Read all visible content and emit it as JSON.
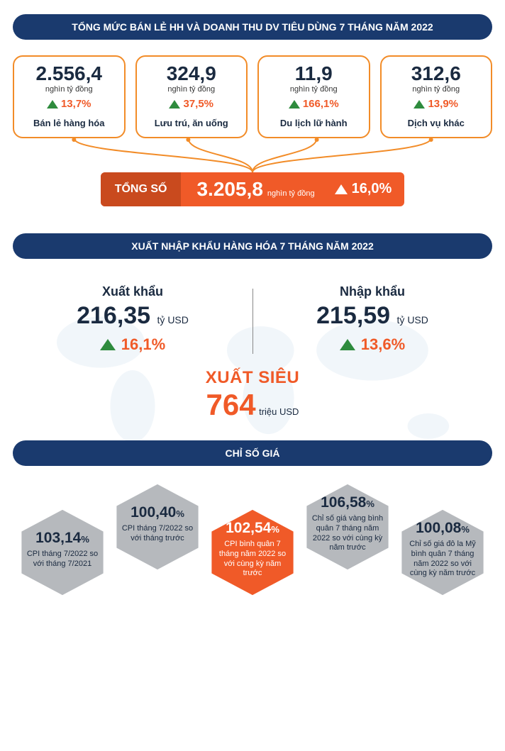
{
  "colors": {
    "navy": "#1a3a6e",
    "orange": "#f05a28",
    "card_border": "#f28c28",
    "green": "#2e8b3d",
    "gray_hex": "#b6b9bd",
    "text_dark": "#1a2a40",
    "map_tint": "#b8d2e6"
  },
  "retail": {
    "header": "TỔNG MỨC BÁN LẺ HH VÀ DOANH THU DV TIÊU DÙNG 7 THÁNG NĂM 2022",
    "unit": "nghìn tỷ đồng",
    "cards": [
      {
        "value": "2.556,4",
        "growth": "13,7%",
        "label": "Bán lẻ hàng hóa"
      },
      {
        "value": "324,9",
        "growth": "37,5%",
        "label": "Lưu trú, ăn uống"
      },
      {
        "value": "11,9",
        "growth": "166,1%",
        "label": "Du lịch lữ hành"
      },
      {
        "value": "312,6",
        "growth": "13,9%",
        "label": "Dịch vụ khác"
      }
    ],
    "total": {
      "label": "TỔNG SỐ",
      "value": "3.205,8",
      "unit": "nghìn tỷ đồng",
      "growth": "16,0%"
    }
  },
  "trade": {
    "header": "XUẤT NHẬP KHẨU HÀNG HÓA 7 THÁNG NĂM 2022",
    "export": {
      "title": "Xuất khẩu",
      "value": "216,35",
      "unit": "tỷ USD",
      "growth": "16,1%"
    },
    "import": {
      "title": "Nhập khẩu",
      "value": "215,59",
      "unit": "tỷ USD",
      "growth": "13,6%"
    },
    "surplus": {
      "label": "XUẤT SIÊU",
      "value": "764",
      "unit": "triệu USD"
    }
  },
  "cpi": {
    "header": "CHỈ SỐ GIÁ",
    "hexes": [
      {
        "pct": "103,14%",
        "desc": "CPI tháng 7/2022 so với tháng 7/2021",
        "pos": "low",
        "color": "gray"
      },
      {
        "pct": "100,40%",
        "desc": "CPI tháng 7/2022 so với tháng trước",
        "pos": "high",
        "color": "gray"
      },
      {
        "pct": "102,54%",
        "desc": "CPI bình quân 7 tháng năm 2022 so với cùng kỳ năm trước",
        "pos": "low",
        "color": "orange"
      },
      {
        "pct": "106,58%",
        "desc": "Chỉ số giá vàng bình quân 7 tháng năm 2022 so với cùng kỳ năm trước",
        "pos": "high",
        "color": "gray"
      },
      {
        "pct": "100,08%",
        "desc": "Chỉ số giá đô la Mỹ bình quân 7 tháng năm 2022 so với cùng kỳ năm trước",
        "pos": "low",
        "color": "gray"
      }
    ]
  }
}
